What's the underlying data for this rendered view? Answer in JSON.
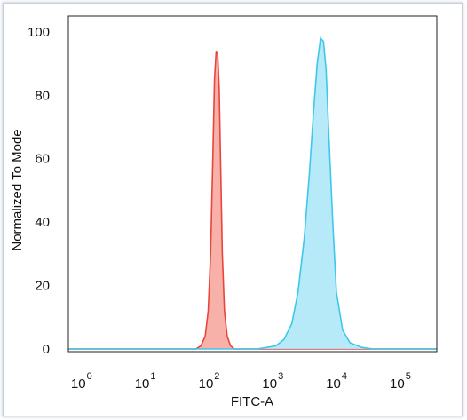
{
  "chart_data": {
    "type": "area",
    "title": "",
    "xlabel": "FITC-A",
    "ylabel": "Normalized To Mode",
    "xscale": "log",
    "xlim": [
      0.5,
      300000
    ],
    "ylim": [
      0,
      105
    ],
    "x_ticks": [
      {
        "base": "10",
        "exp": "0",
        "value": 1
      },
      {
        "base": "10",
        "exp": "1",
        "value": 10
      },
      {
        "base": "10",
        "exp": "2",
        "value": 100
      },
      {
        "base": "10",
        "exp": "3",
        "value": 1000
      },
      {
        "base": "10",
        "exp": "4",
        "value": 10000
      },
      {
        "base": "10",
        "exp": "5",
        "value": 100000
      }
    ],
    "y_ticks": [
      "0",
      "20",
      "40",
      "60",
      "80",
      "100"
    ],
    "y_tick_values": [
      0,
      20,
      40,
      60,
      80,
      100
    ],
    "grid": false,
    "legend": "none",
    "series": [
      {
        "color": "#e8453c",
        "fill": "#f7a8a0",
        "x": [
          0.5,
          50,
          60,
          70,
          78,
          85,
          92,
          98,
          104,
          110,
          116,
          122,
          130,
          140,
          155,
          175,
          200,
          240,
          300000
        ],
        "y": [
          0,
          0,
          1,
          4,
          12,
          30,
          60,
          85,
          94,
          93,
          82,
          58,
          30,
          12,
          4,
          1,
          0,
          0,
          0
        ]
      },
      {
        "color": "#3ec8ea",
        "fill": "#aee8f8",
        "x": [
          0.5,
          450,
          650,
          900,
          1200,
          1600,
          2000,
          2500,
          3000,
          3500,
          4000,
          4500,
          5000,
          5500,
          6000,
          7000,
          8000,
          10000,
          13000,
          20000,
          30000,
          300000
        ],
        "y": [
          0,
          0,
          0.5,
          1,
          3,
          8,
          18,
          35,
          55,
          75,
          90,
          98,
          97,
          88,
          70,
          40,
          18,
          6,
          2,
          0.5,
          0,
          0
        ]
      }
    ]
  }
}
